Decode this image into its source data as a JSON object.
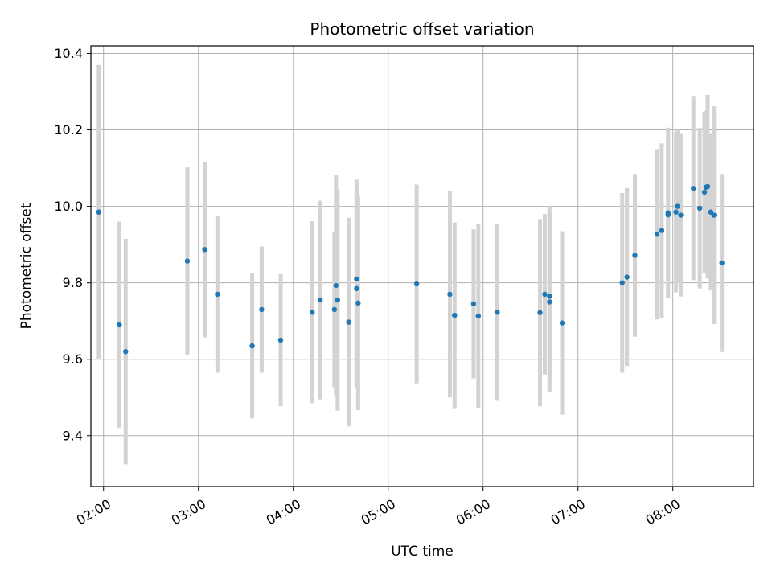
{
  "chart_data": {
    "type": "scatter",
    "title": "Photometric offset variation",
    "xlabel": "UTC time",
    "ylabel": "Photometric offset",
    "x_ticks": [
      "02:00",
      "03:00",
      "04:00",
      "05:00",
      "06:00",
      "07:00",
      "08:00"
    ],
    "y_ticks": [
      "9.4",
      "9.6",
      "9.8",
      "10.0",
      "10.2",
      "10.4"
    ],
    "xlim": [
      "01:52",
      "08:51"
    ],
    "ylim": [
      9.267,
      10.42
    ],
    "grid": true,
    "colors": {
      "points": "#1f77b4",
      "errorbars": "#d3d3d3",
      "grid": "#b0b0b0",
      "axes": "#000000"
    },
    "points": [
      {
        "x": "01:57",
        "y": 9.985,
        "err": 0.385
      },
      {
        "x": "02:10",
        "y": 9.69,
        "err": 0.27
      },
      {
        "x": "02:14",
        "y": 9.62,
        "err": 0.295
      },
      {
        "x": "02:53",
        "y": 9.857,
        "err": 0.245
      },
      {
        "x": "03:04",
        "y": 9.887,
        "err": 0.23
      },
      {
        "x": "03:12",
        "y": 9.77,
        "err": 0.205
      },
      {
        "x": "03:34",
        "y": 9.635,
        "err": 0.19
      },
      {
        "x": "03:40",
        "y": 9.73,
        "err": 0.165
      },
      {
        "x": "03:52",
        "y": 9.65,
        "err": 0.173
      },
      {
        "x": "04:12",
        "y": 9.723,
        "err": 0.238
      },
      {
        "x": "04:17",
        "y": 9.755,
        "err": 0.26
      },
      {
        "x": "04:26",
        "y": 9.73,
        "err": 0.203
      },
      {
        "x": "04:27",
        "y": 9.793,
        "err": 0.29
      },
      {
        "x": "04:28",
        "y": 9.755,
        "err": 0.29
      },
      {
        "x": "04:35",
        "y": 9.697,
        "err": 0.273
      },
      {
        "x": "04:40",
        "y": 9.81,
        "err": 0.26
      },
      {
        "x": "04:40",
        "y": 9.785,
        "err": 0.26
      },
      {
        "x": "04:41",
        "y": 9.747,
        "err": 0.28
      },
      {
        "x": "05:18",
        "y": 9.797,
        "err": 0.26
      },
      {
        "x": "05:39",
        "y": 9.77,
        "err": 0.27
      },
      {
        "x": "05:42",
        "y": 9.715,
        "err": 0.243
      },
      {
        "x": "05:54",
        "y": 9.745,
        "err": 0.195
      },
      {
        "x": "05:57",
        "y": 9.713,
        "err": 0.24
      },
      {
        "x": "06:09",
        "y": 9.723,
        "err": 0.232
      },
      {
        "x": "06:36",
        "y": 9.722,
        "err": 0.245
      },
      {
        "x": "06:39",
        "y": 9.77,
        "err": 0.21
      },
      {
        "x": "06:42",
        "y": 9.765,
        "err": 0.235
      },
      {
        "x": "06:42",
        "y": 9.75,
        "err": 0.235
      },
      {
        "x": "06:50",
        "y": 9.695,
        "err": 0.24
      },
      {
        "x": "07:28",
        "y": 9.8,
        "err": 0.235
      },
      {
        "x": "07:31",
        "y": 9.815,
        "err": 0.233
      },
      {
        "x": "07:36",
        "y": 9.872,
        "err": 0.213
      },
      {
        "x": "07:50",
        "y": 9.927,
        "err": 0.223
      },
      {
        "x": "07:53",
        "y": 9.937,
        "err": 0.228
      },
      {
        "x": "07:57",
        "y": 9.983,
        "err": 0.223
      },
      {
        "x": "07:57",
        "y": 9.978,
        "err": 0.2
      },
      {
        "x": "08:02",
        "y": 9.985,
        "err": 0.21
      },
      {
        "x": "08:03",
        "y": 10.0,
        "err": 0.2
      },
      {
        "x": "08:05",
        "y": 9.977,
        "err": 0.213
      },
      {
        "x": "08:13",
        "y": 10.047,
        "err": 0.24
      },
      {
        "x": "08:17",
        "y": 9.995,
        "err": 0.21
      },
      {
        "x": "08:20",
        "y": 10.037,
        "err": 0.21
      },
      {
        "x": "08:21",
        "y": 10.05,
        "err": 0.2
      },
      {
        "x": "08:22",
        "y": 10.052,
        "err": 0.24
      },
      {
        "x": "08:24",
        "y": 9.985,
        "err": 0.205
      },
      {
        "x": "08:26",
        "y": 9.977,
        "err": 0.285
      },
      {
        "x": "08:31",
        "y": 9.852,
        "err": 0.233
      }
    ]
  }
}
